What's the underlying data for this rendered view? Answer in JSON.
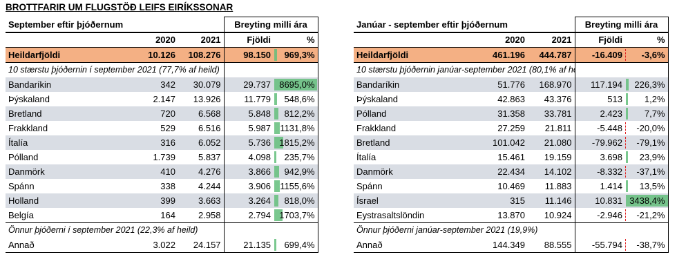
{
  "title": "BROTTFARIR UM FLUGSTÖÐ LEIFS EIRÍKSSONAR",
  "left": {
    "subtitle": "September eftir þjóðernum",
    "change_header": "Breyting milli ára",
    "col_2020": "2020",
    "col_2021": "2021",
    "col_count": "Fjöldi",
    "col_pct": "%",
    "total": {
      "label": "Heildarfjöldi",
      "y2020": "10.126",
      "y2021": "108.276",
      "diff": "98.150",
      "pct": "969,3%"
    },
    "top_note": "10 stærstu þjóðernin í september 2021 (77,7% af heild)",
    "rows": [
      {
        "label": "Bandaríkin",
        "y2020": "342",
        "y2021": "30.079",
        "diff": "29.737",
        "pct": "8695,0%"
      },
      {
        "label": "Þýskaland",
        "y2020": "2.147",
        "y2021": "13.926",
        "diff": "11.779",
        "pct": "548,6%"
      },
      {
        "label": "Bretland",
        "y2020": "720",
        "y2021": "6.568",
        "diff": "5.848",
        "pct": "812,2%"
      },
      {
        "label": "Frakkland",
        "y2020": "529",
        "y2021": "6.516",
        "diff": "5.987",
        "pct": "1131,8%"
      },
      {
        "label": "Ítalía",
        "y2020": "316",
        "y2021": "6.052",
        "diff": "5.736",
        "pct": "1815,2%"
      },
      {
        "label": "Pólland",
        "y2020": "1.739",
        "y2021": "5.837",
        "diff": "4.098",
        "pct": "235,7%"
      },
      {
        "label": "Danmörk",
        "y2020": "410",
        "y2021": "4.276",
        "diff": "3.866",
        "pct": "942,9%"
      },
      {
        "label": "Spánn",
        "y2020": "338",
        "y2021": "4.244",
        "diff": "3.906",
        "pct": "1155,6%"
      },
      {
        "label": "Holland",
        "y2020": "399",
        "y2021": "3.663",
        "diff": "3.264",
        "pct": "818,0%"
      },
      {
        "label": "Belgía",
        "y2020": "164",
        "y2021": "2.958",
        "diff": "2.794",
        "pct": "1703,7%"
      }
    ],
    "other_note": "Önnur þjóðerni í september 2021 (22,3% af heild)",
    "other": {
      "label": "Annað",
      "y2020": "3.022",
      "y2021": "24.157",
      "diff": "21.135",
      "pct": "699,4%"
    }
  },
  "right": {
    "subtitle": "Janúar - september eftir þjóðernum",
    "change_header": "Breyting milli ára",
    "col_2020": "2020",
    "col_2021": "2021",
    "col_count": "Fjöldi",
    "col_pct": "%",
    "total": {
      "label": "Heildarfjöldi",
      "y2020": "461.196",
      "y2021": "444.787",
      "diff": "-16.409",
      "pct": "-3,6%"
    },
    "top_note": "10 stærstu þjóðernin janúar-september 2021 (80,1% af heild)",
    "rows": [
      {
        "label": "Bandaríkin",
        "y2020": "51.776",
        "y2021": "168.970",
        "diff": "117.194",
        "pct": "226,3%"
      },
      {
        "label": "Þýskaland",
        "y2020": "42.863",
        "y2021": "43.376",
        "diff": "513",
        "pct": "1,2%"
      },
      {
        "label": "Pólland",
        "y2020": "31.358",
        "y2021": "33.781",
        "diff": "2.423",
        "pct": "7,7%"
      },
      {
        "label": "Frakkland",
        "y2020": "27.259",
        "y2021": "21.811",
        "diff": "-5.448",
        "pct": "-20,0%"
      },
      {
        "label": "Bretland",
        "y2020": "101.042",
        "y2021": "21.080",
        "diff": "-79.962",
        "pct": "-79,1%"
      },
      {
        "label": "Ítalía",
        "y2020": "15.461",
        "y2021": "19.159",
        "diff": "3.698",
        "pct": "23,9%"
      },
      {
        "label": "Danmörk",
        "y2020": "22.434",
        "y2021": "14.102",
        "diff": "-8.332",
        "pct": "-37,1%"
      },
      {
        "label": "Spánn",
        "y2020": "10.469",
        "y2021": "11.883",
        "diff": "1.414",
        "pct": "13,5%"
      },
      {
        "label": "Ísrael",
        "y2020": "315",
        "y2021": "11.146",
        "diff": "10.831",
        "pct": "3438,4%"
      },
      {
        "label": "Eystrasaltslöndin",
        "y2020": "13.870",
        "y2021": "10.924",
        "diff": "-2.946",
        "pct": "-21,2%"
      }
    ],
    "other_note": "Önnur þjóðerni janúar-september 2021 (19,9%)",
    "other": {
      "label": "Annað",
      "y2020": "144.349",
      "y2021": "88.555",
      "diff": "-55.794",
      "pct": "-38,7%"
    }
  }
}
